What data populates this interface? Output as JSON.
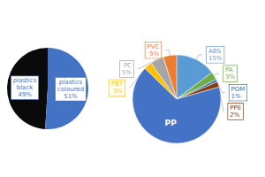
{
  "chart_data": [
    {
      "type": "pie",
      "categories": [
        "plastics\nblack",
        "plastics\ncoloured"
      ],
      "values": [
        49,
        51
      ],
      "value_labels": [
        "49%",
        "51%"
      ],
      "colors": [
        "#0a0a0a",
        "#4472C4"
      ],
      "data_labels": true
    },
    {
      "type": "pie",
      "categories": [
        "ABS",
        "PA",
        "POM",
        "PPE",
        "PP",
        "PBT",
        "PC",
        "PVC"
      ],
      "values": [
        15,
        3,
        1,
        2,
        68,
        3,
        5,
        5
      ],
      "value_labels": [
        "15%",
        "3%",
        "1%",
        "2%",
        null,
        "3%",
        "5%",
        "5%"
      ],
      "colors": [
        "#5B9BD5",
        "#70AD47",
        "#2E75B6",
        "#843C0C",
        "#4472C4",
        "#FFC000",
        "#A6A6A6",
        "#ED7D31"
      ],
      "data_labels": true
    }
  ]
}
